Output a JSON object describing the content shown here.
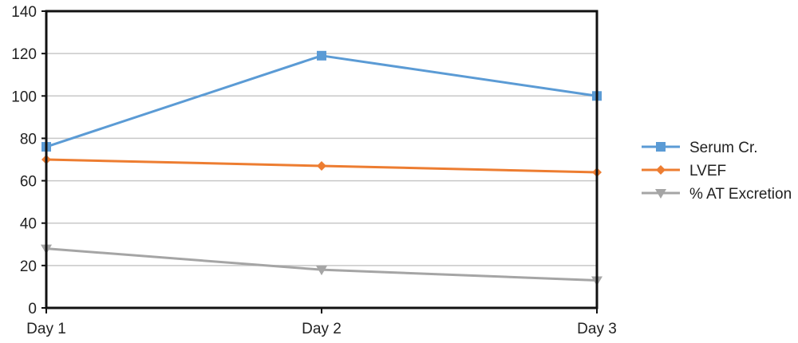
{
  "chart_data": {
    "type": "line",
    "title": "",
    "xlabel": "",
    "ylabel": "",
    "categories": [
      "Day 1",
      "Day 2",
      "Day 3"
    ],
    "ylim": [
      0,
      140
    ],
    "yticks": [
      "0",
      "20",
      "40",
      "60",
      "80",
      "100",
      "120",
      "140"
    ],
    "grid": "horizontal",
    "legend_position": "right",
    "series": [
      {
        "name": "Serum Cr.",
        "values": [
          76,
          119,
          100
        ],
        "color": "#5B9BD5",
        "marker": "square"
      },
      {
        "name": "LVEF",
        "values": [
          70,
          67,
          64
        ],
        "color": "#ED7D31",
        "marker": "diamond"
      },
      {
        "name": "% AT Excretion",
        "values": [
          28,
          18,
          13
        ],
        "color": "#A5A5A5",
        "marker": "triangle-down"
      }
    ]
  }
}
